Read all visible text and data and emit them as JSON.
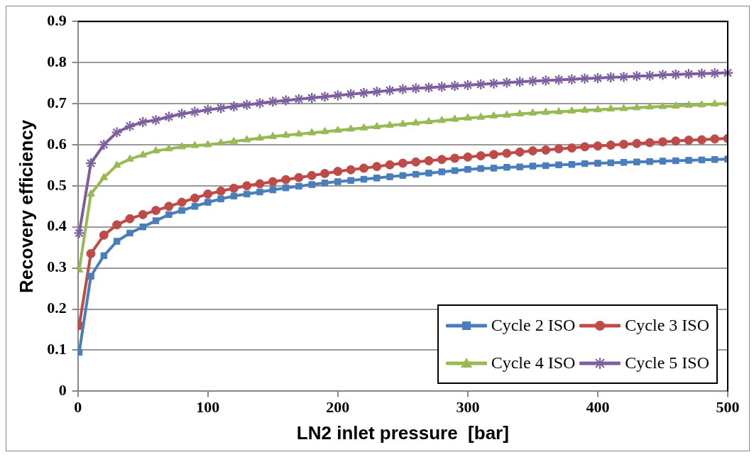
{
  "chart_data": {
    "type": "line",
    "xlabel": "LN2 inlet pressure  [bar]",
    "ylabel": "Recovery efficiency",
    "x": [
      1,
      10,
      20,
      30,
      40,
      50,
      60,
      70,
      80,
      90,
      100,
      110,
      120,
      130,
      140,
      150,
      160,
      170,
      180,
      190,
      200,
      210,
      220,
      230,
      240,
      250,
      260,
      270,
      280,
      290,
      300,
      310,
      320,
      330,
      340,
      350,
      360,
      370,
      380,
      390,
      400,
      410,
      420,
      430,
      440,
      450,
      460,
      470,
      480,
      490,
      500
    ],
    "series": [
      {
        "name": "Cycle 2 ISO",
        "color": "#4a7ebb",
        "marker": "square",
        "values": [
          0.095,
          0.28,
          0.33,
          0.365,
          0.385,
          0.4,
          0.415,
          0.43,
          0.44,
          0.45,
          0.46,
          0.468,
          0.475,
          0.48,
          0.485,
          0.49,
          0.495,
          0.499,
          0.503,
          0.507,
          0.51,
          0.513,
          0.516,
          0.519,
          0.522,
          0.525,
          0.528,
          0.531,
          0.534,
          0.537,
          0.54,
          0.542,
          0.543,
          0.545,
          0.546,
          0.548,
          0.549,
          0.551,
          0.552,
          0.554,
          0.555,
          0.556,
          0.557,
          0.558,
          0.559,
          0.56,
          0.561,
          0.562,
          0.563,
          0.564,
          0.565
        ]
      },
      {
        "name": "Cycle 3 ISO",
        "color": "#be4b48",
        "marker": "circle",
        "values": [
          0.16,
          0.335,
          0.38,
          0.405,
          0.42,
          0.43,
          0.44,
          0.45,
          0.46,
          0.47,
          0.48,
          0.487,
          0.494,
          0.5,
          0.505,
          0.51,
          0.515,
          0.52,
          0.525,
          0.53,
          0.535,
          0.539,
          0.543,
          0.547,
          0.551,
          0.555,
          0.558,
          0.561,
          0.564,
          0.567,
          0.57,
          0.573,
          0.576,
          0.579,
          0.582,
          0.585,
          0.587,
          0.59,
          0.592,
          0.595,
          0.597,
          0.599,
          0.601,
          0.603,
          0.605,
          0.607,
          0.609,
          0.611,
          0.612,
          0.614,
          0.615
        ]
      },
      {
        "name": "Cycle 4 ISO",
        "color": "#98b954",
        "marker": "triangle",
        "values": [
          0.295,
          0.48,
          0.52,
          0.55,
          0.565,
          0.575,
          0.585,
          0.59,
          0.595,
          0.598,
          0.6,
          0.604,
          0.608,
          0.612,
          0.616,
          0.62,
          0.623,
          0.626,
          0.629,
          0.632,
          0.635,
          0.638,
          0.641,
          0.644,
          0.647,
          0.65,
          0.653,
          0.656,
          0.659,
          0.662,
          0.665,
          0.667,
          0.67,
          0.672,
          0.675,
          0.677,
          0.679,
          0.68,
          0.682,
          0.684,
          0.685,
          0.687,
          0.688,
          0.69,
          0.692,
          0.693,
          0.694,
          0.696,
          0.697,
          0.699,
          0.7
        ]
      },
      {
        "name": "Cycle 5 ISO",
        "color": "#7d5fa0",
        "marker": "star",
        "values": [
          0.385,
          0.555,
          0.6,
          0.63,
          0.645,
          0.655,
          0.66,
          0.668,
          0.675,
          0.68,
          0.685,
          0.689,
          0.693,
          0.697,
          0.701,
          0.705,
          0.708,
          0.711,
          0.714,
          0.717,
          0.72,
          0.723,
          0.726,
          0.729,
          0.732,
          0.735,
          0.737,
          0.739,
          0.741,
          0.743,
          0.745,
          0.747,
          0.749,
          0.751,
          0.753,
          0.755,
          0.756,
          0.758,
          0.759,
          0.761,
          0.762,
          0.764,
          0.765,
          0.767,
          0.768,
          0.77,
          0.771,
          0.772,
          0.773,
          0.774,
          0.775
        ]
      }
    ],
    "xlim": [
      0,
      500
    ],
    "xticks": [
      0,
      100,
      200,
      300,
      400,
      500
    ],
    "ylim": [
      0,
      0.9
    ],
    "yticks": [
      {
        "value": 0,
        "label": "0"
      },
      0.1,
      0.2,
      0.3,
      0.4,
      0.5,
      0.6,
      0.7,
      0.8,
      0.9
    ],
    "grid": "y",
    "legend": "bottom right",
    "line_style": "solid"
  }
}
